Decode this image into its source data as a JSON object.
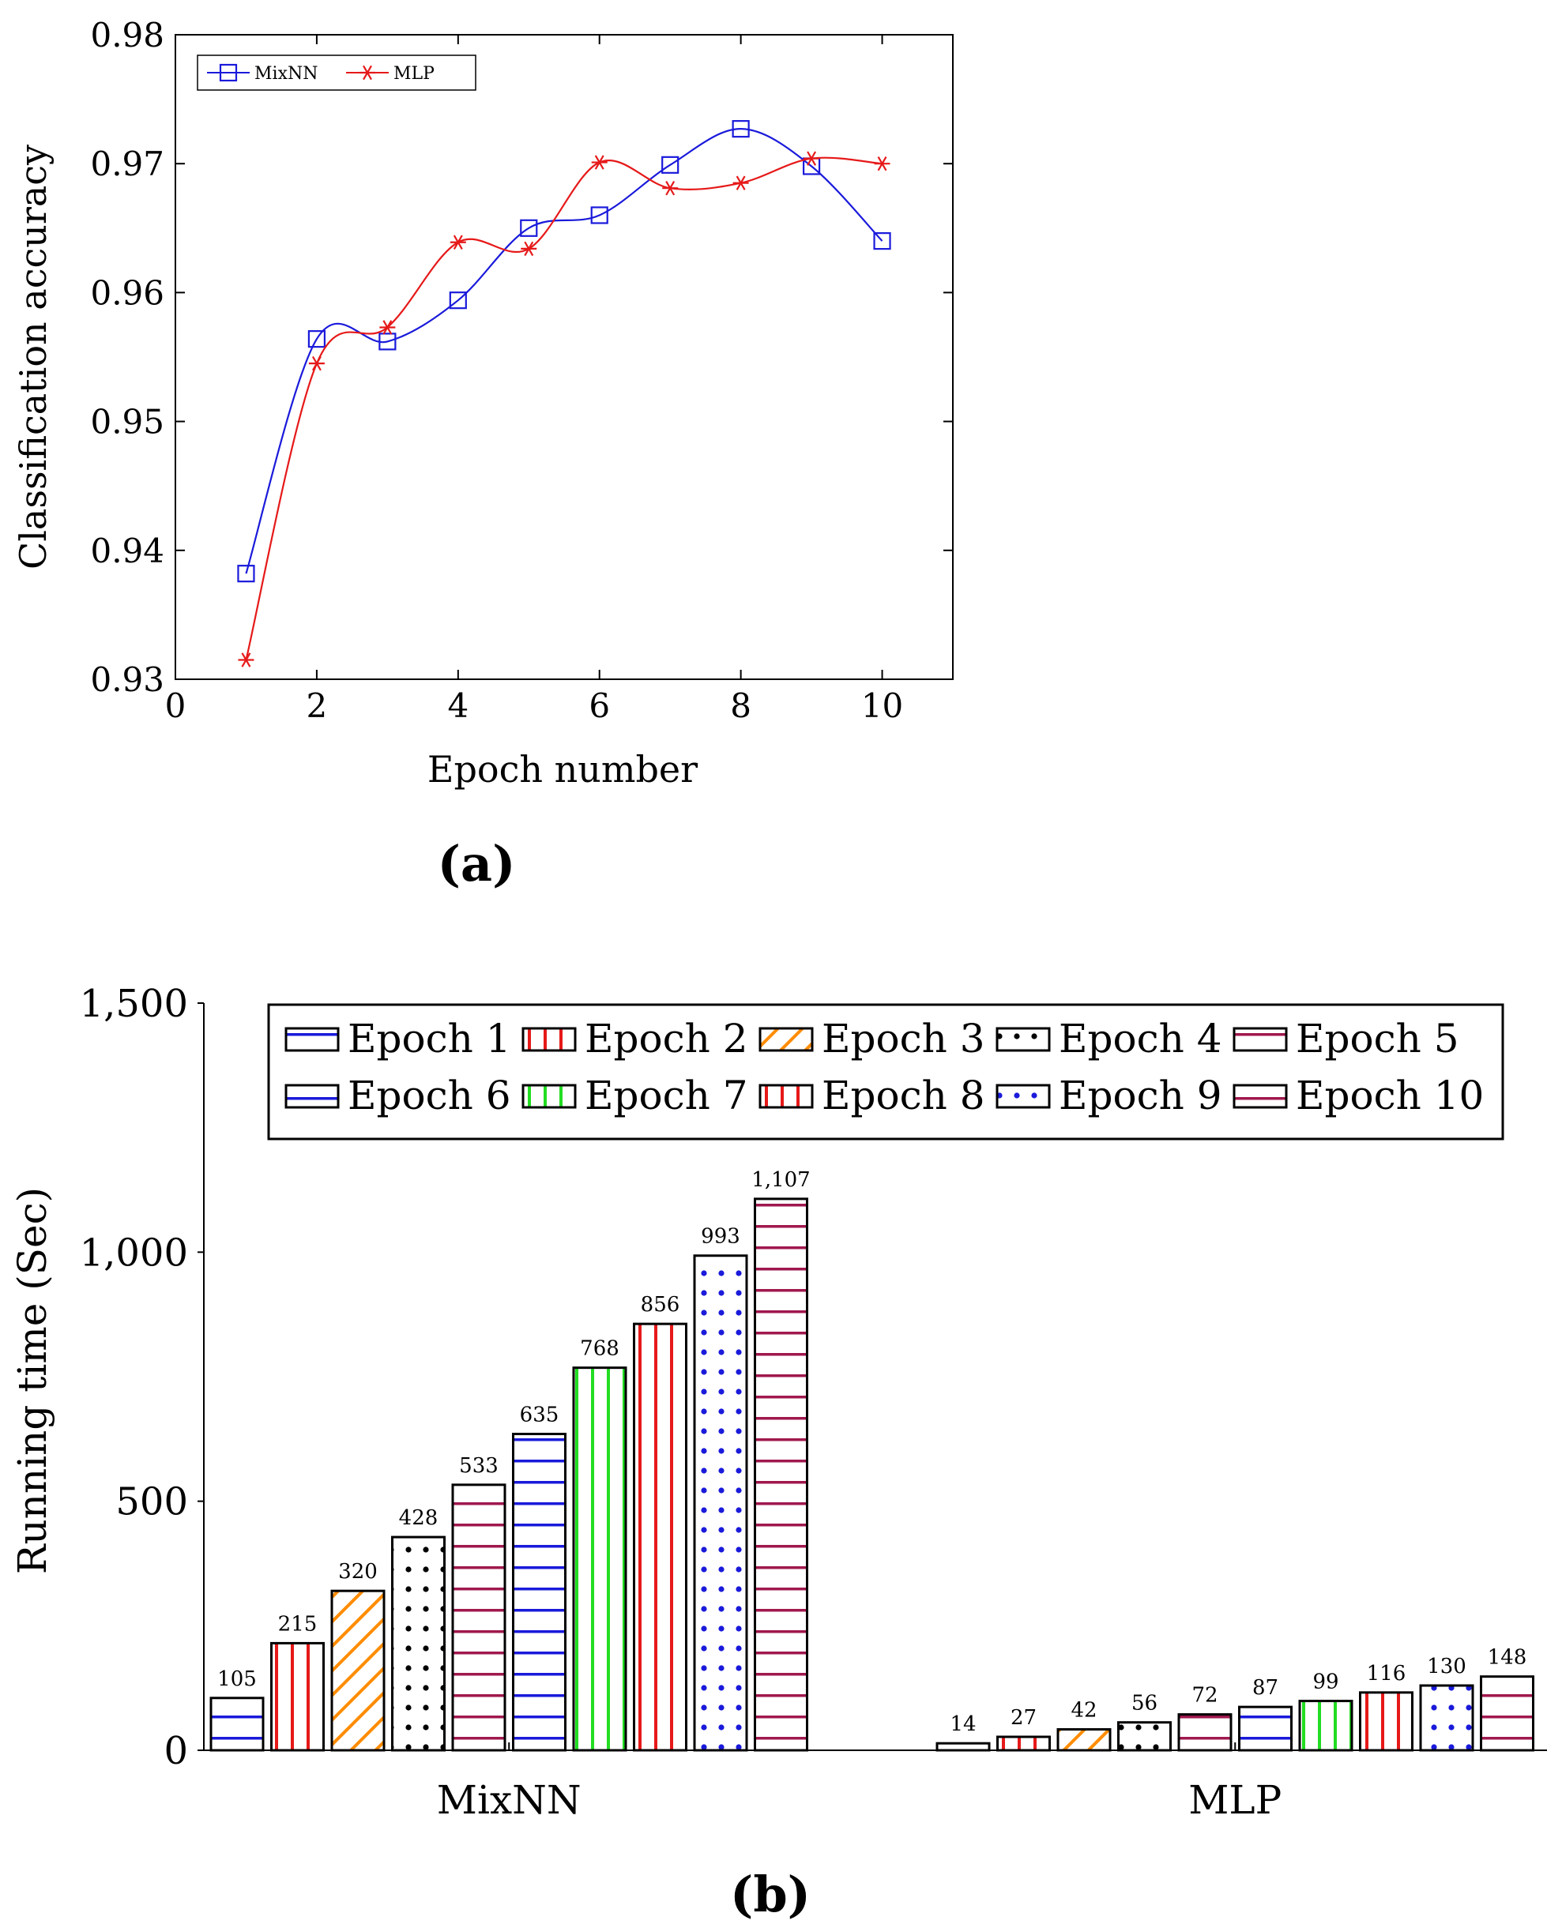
{
  "panels": {
    "a_label": "(a)",
    "b_label": "(b)"
  },
  "colors": {
    "mixnn": "#1a1adb",
    "mlp": "#e61919",
    "blue": "#1a1adb",
    "red": "#e61919",
    "orange": "#ff8c00",
    "black": "#000000",
    "purple": "#a0184e",
    "green": "#22dd22"
  },
  "chart_data": [
    {
      "type": "line",
      "title": "",
      "xlabel": "Epoch number",
      "ylabel": "Classification accuracy",
      "xlim": [
        0,
        11
      ],
      "ylim": [
        0.93,
        0.98
      ],
      "xticks": [
        0,
        2,
        4,
        6,
        8,
        10
      ],
      "xtick_labels": [
        "0",
        "2",
        "4",
        "6",
        "8",
        "10"
      ],
      "yticks": [
        0.93,
        0.94,
        0.95,
        0.96,
        0.97,
        0.98
      ],
      "ytick_labels": [
        "0.93",
        "0.94",
        "0.95",
        "0.96",
        "0.97",
        "0.98"
      ],
      "legend": [
        "MixNN",
        "MLP"
      ],
      "legend_position": "top-left",
      "x": [
        1,
        2,
        3,
        4,
        5,
        6,
        7,
        8,
        9,
        10
      ],
      "series": [
        {
          "name": "MixNN",
          "marker": "square",
          "color": "#1a1adb",
          "values": [
            0.9382,
            0.9564,
            0.9562,
            0.9594,
            0.965,
            0.966,
            0.9699,
            0.9727,
            0.9698,
            0.964
          ]
        },
        {
          "name": "MLP",
          "marker": "star",
          "color": "#e61919",
          "values": [
            0.9315,
            0.9545,
            0.9573,
            0.9639,
            0.9634,
            0.9701,
            0.9681,
            0.9685,
            0.9704,
            0.97
          ]
        }
      ]
    },
    {
      "type": "bar",
      "title": "",
      "xlabel": "",
      "ylabel": "Running time (Sec)",
      "ylim": [
        0,
        1500
      ],
      "yticks": [
        0,
        500,
        1000,
        1500
      ],
      "ytick_labels": [
        "0",
        "500",
        "1,000",
        "1,500"
      ],
      "categories": [
        "MixNN",
        "MLP"
      ],
      "legend_position": "top",
      "series": [
        {
          "name": "Epoch 1",
          "pattern": "hlines",
          "color": "#1a1adb",
          "values": [
            105,
            14
          ],
          "value_labels": [
            "105",
            "14"
          ]
        },
        {
          "name": "Epoch 2",
          "pattern": "vlines",
          "color": "#e61919",
          "values": [
            215,
            27
          ],
          "value_labels": [
            "215",
            "27"
          ]
        },
        {
          "name": "Epoch 3",
          "pattern": "diag",
          "color": "#ff8c00",
          "values": [
            320,
            42
          ],
          "value_labels": [
            "320",
            "42"
          ]
        },
        {
          "name": "Epoch 4",
          "pattern": "dots",
          "color": "#000000",
          "values": [
            428,
            56
          ],
          "value_labels": [
            "428",
            "56"
          ]
        },
        {
          "name": "Epoch 5",
          "pattern": "hlines",
          "color": "#a0184e",
          "values": [
            533,
            72
          ],
          "value_labels": [
            "533",
            "72"
          ]
        },
        {
          "name": "Epoch 6",
          "pattern": "hlines",
          "color": "#1a1adb",
          "values": [
            635,
            87
          ],
          "value_labels": [
            "635",
            "87"
          ]
        },
        {
          "name": "Epoch 7",
          "pattern": "vlines",
          "color": "#22dd22",
          "values": [
            768,
            99
          ],
          "value_labels": [
            "768",
            "99"
          ]
        },
        {
          "name": "Epoch 8",
          "pattern": "vlines",
          "color": "#e61919",
          "values": [
            856,
            116
          ],
          "value_labels": [
            "856",
            "116"
          ]
        },
        {
          "name": "Epoch 9",
          "pattern": "dots",
          "color": "#1a1adb",
          "values": [
            993,
            130
          ],
          "value_labels": [
            "993",
            "130"
          ]
        },
        {
          "name": "Epoch 10",
          "pattern": "hlines",
          "color": "#a0184e",
          "values": [
            1107,
            148
          ],
          "value_labels": [
            "1,107",
            "148"
          ]
        }
      ]
    }
  ]
}
